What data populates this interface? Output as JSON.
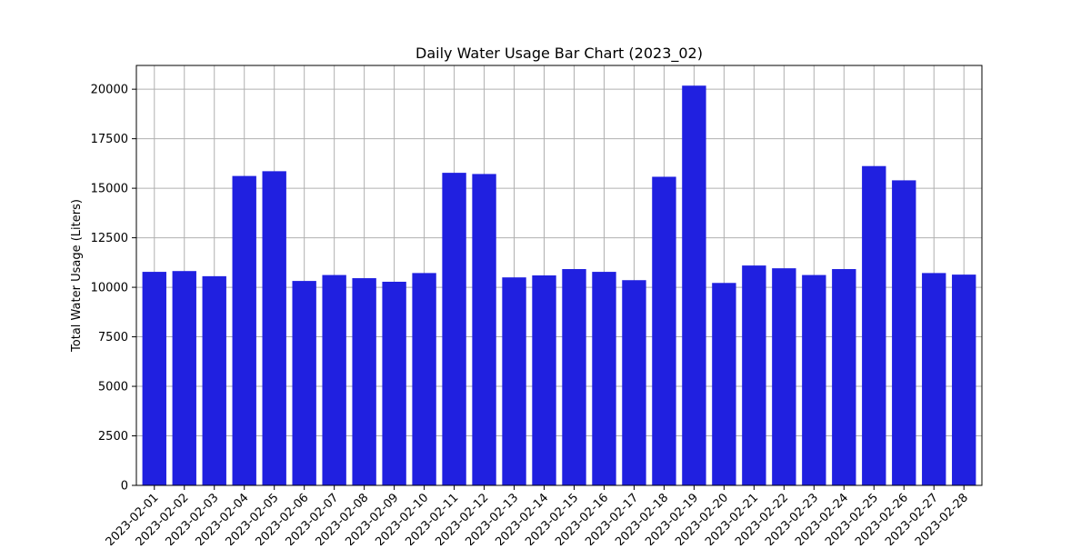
{
  "chart_data": {
    "type": "bar",
    "title": "Daily Water Usage Bar Chart (2023_02)",
    "xlabel": "",
    "ylabel": "Total Water Usage (Liters)",
    "ylim": [
      0,
      21200
    ],
    "yticks": [
      0,
      2500,
      5000,
      7500,
      10000,
      12500,
      15000,
      17500,
      20000
    ],
    "grid": true,
    "legend": "none",
    "bar_color": "#2020e0",
    "grid_color": "#b0b0b0",
    "categories": [
      "2023-02-01",
      "2023-02-02",
      "2023-02-03",
      "2023-02-04",
      "2023-02-05",
      "2023-02-06",
      "2023-02-07",
      "2023-02-08",
      "2023-02-09",
      "2023-02-10",
      "2023-02-11",
      "2023-02-12",
      "2023-02-13",
      "2023-02-14",
      "2023-02-15",
      "2023-02-16",
      "2023-02-17",
      "2023-02-18",
      "2023-02-19",
      "2023-02-20",
      "2023-02-21",
      "2023-02-22",
      "2023-02-23",
      "2023-02-24",
      "2023-02-25",
      "2023-02-26",
      "2023-02-27",
      "2023-02-28"
    ],
    "values": [
      10780,
      10820,
      10560,
      15620,
      15860,
      10320,
      10620,
      10460,
      10280,
      10720,
      15780,
      15720,
      10500,
      10600,
      10920,
      10780,
      10360,
      15580,
      20180,
      10220,
      11100,
      10960,
      10620,
      10920,
      16120,
      15400,
      10720,
      10640
    ]
  }
}
